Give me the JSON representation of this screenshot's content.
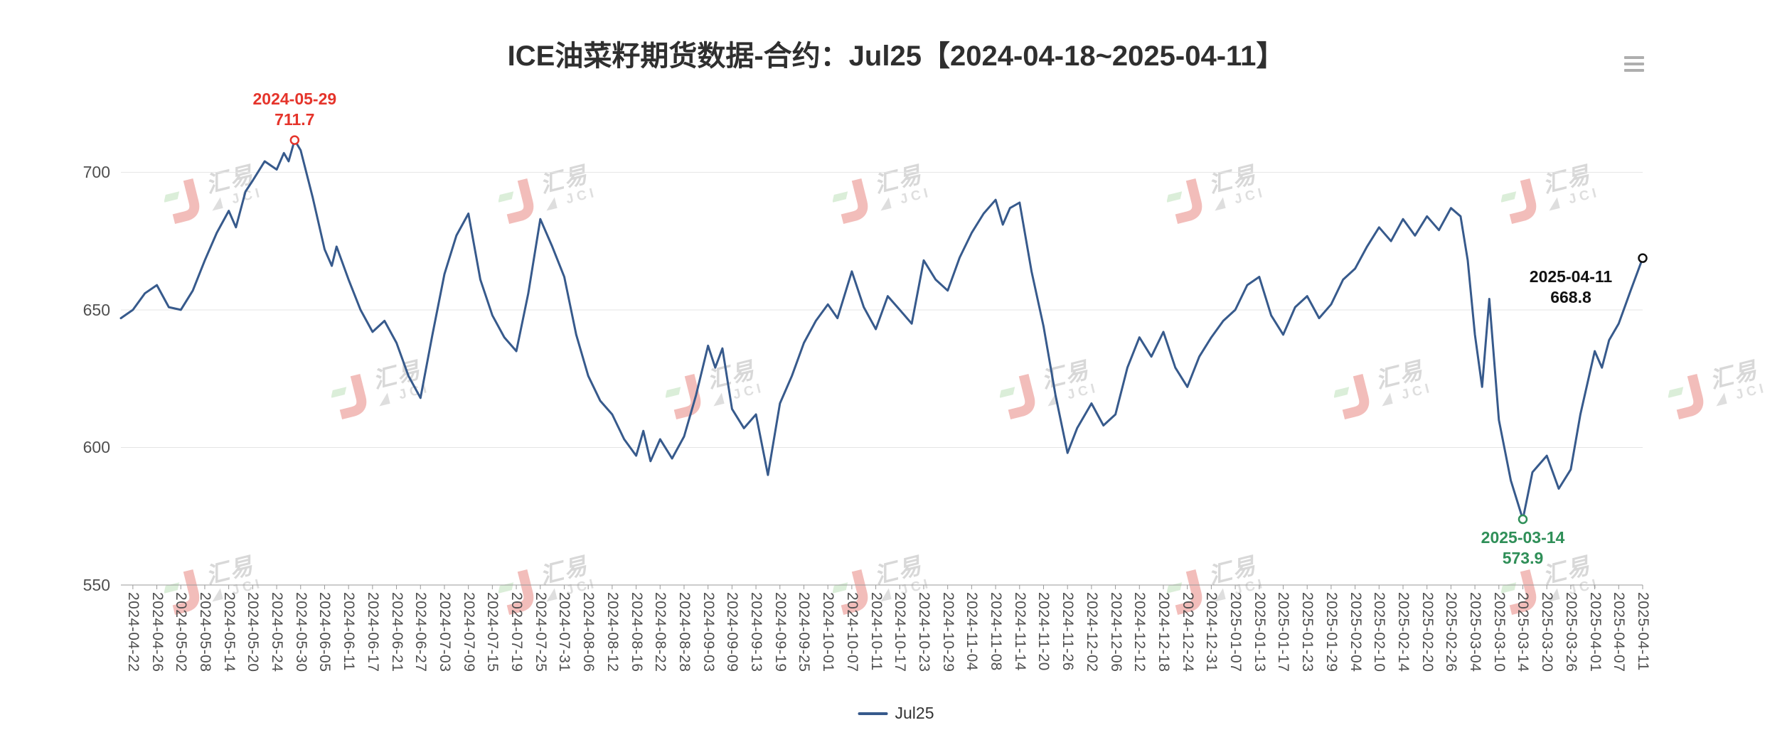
{
  "header": {
    "toolbox_icon": "menu-icon"
  },
  "watermark": {
    "cn": "汇易",
    "en": "JCI"
  },
  "colors": {
    "line": "#375A8C",
    "max_annotation": "#E5342B",
    "min_annotation": "#2F8F58",
    "last_annotation": "#111111",
    "grid": "#e4e4e4",
    "axis": "#999999",
    "axis_label": "#4f4f4f",
    "watermark_red": "#E2635C",
    "watermark_green": "#ABD8A6"
  },
  "legend": {
    "items": [
      "Jul25"
    ]
  },
  "chart_data": {
    "type": "line",
    "title": "ICE油菜籽期货数据-合约：Jul25【2024-04-18~2025-04-11】",
    "xlabel": "",
    "ylabel": "",
    "ylim": [
      550,
      720
    ],
    "y_ticks": [
      550,
      600,
      650,
      700
    ],
    "grid": true,
    "legend_position": "bottom-center",
    "x_encoding": "points are [t, value] where t is a fractional index into x_tick_labels (each tick = 4 trading days; series begins 2024-04-18 at t=-0.5)",
    "x_tick_labels": [
      "2024-04-22",
      "2024-04-26",
      "2024-05-02",
      "2024-05-08",
      "2024-05-14",
      "2024-05-20",
      "2024-05-24",
      "2024-05-30",
      "2024-06-05",
      "2024-06-11",
      "2024-06-17",
      "2024-06-21",
      "2024-06-27",
      "2024-07-03",
      "2024-07-09",
      "2024-07-15",
      "2024-07-19",
      "2024-07-25",
      "2024-07-31",
      "2024-08-06",
      "2024-08-12",
      "2024-08-16",
      "2024-08-22",
      "2024-08-28",
      "2024-09-03",
      "2024-09-09",
      "2024-09-13",
      "2024-09-19",
      "2024-09-25",
      "2024-10-01",
      "2024-10-07",
      "2024-10-11",
      "2024-10-17",
      "2024-10-23",
      "2024-10-29",
      "2024-11-04",
      "2024-11-08",
      "2024-11-14",
      "2024-11-20",
      "2024-11-26",
      "2024-12-02",
      "2024-12-06",
      "2024-12-12",
      "2024-12-18",
      "2024-12-24",
      "2024-12-31",
      "2025-01-07",
      "2025-01-13",
      "2025-01-17",
      "2025-01-23",
      "2025-01-29",
      "2025-02-04",
      "2025-02-10",
      "2025-02-14",
      "2025-02-20",
      "2025-02-26",
      "2025-03-04",
      "2025-03-10",
      "2025-03-14",
      "2025-03-20",
      "2025-03-26",
      "2025-04-01",
      "2025-04-07",
      "2025-04-11"
    ],
    "series": [
      {
        "name": "Jul25",
        "color": "#375A8C",
        "points": [
          [
            -0.5,
            647
          ],
          [
            0,
            650
          ],
          [
            0.5,
            656
          ],
          [
            1,
            659
          ],
          [
            1.5,
            651
          ],
          [
            2,
            650
          ],
          [
            2.5,
            657
          ],
          [
            3,
            668
          ],
          [
            3.5,
            678
          ],
          [
            4,
            686
          ],
          [
            4.3,
            680
          ],
          [
            4.7,
            693
          ],
          [
            5,
            697
          ],
          [
            5.5,
            704
          ],
          [
            6,
            701
          ],
          [
            6.3,
            707
          ],
          [
            6.5,
            704
          ],
          [
            6.75,
            711.7
          ],
          [
            7,
            708
          ],
          [
            7.5,
            691
          ],
          [
            8,
            672
          ],
          [
            8.3,
            666
          ],
          [
            8.5,
            673
          ],
          [
            9,
            661
          ],
          [
            9.5,
            650
          ],
          [
            10,
            642
          ],
          [
            10.5,
            646
          ],
          [
            11,
            638
          ],
          [
            11.5,
            626
          ],
          [
            12,
            618
          ],
          [
            12.5,
            641
          ],
          [
            13,
            663
          ],
          [
            13.5,
            677
          ],
          [
            14,
            685
          ],
          [
            14.5,
            661
          ],
          [
            15,
            648
          ],
          [
            15.5,
            640
          ],
          [
            16,
            635
          ],
          [
            16.5,
            656
          ],
          [
            17,
            683
          ],
          [
            17.5,
            673
          ],
          [
            18,
            662
          ],
          [
            18.5,
            641
          ],
          [
            19,
            626
          ],
          [
            19.5,
            617
          ],
          [
            20,
            612
          ],
          [
            20.5,
            603
          ],
          [
            21,
            597
          ],
          [
            21.3,
            606
          ],
          [
            21.6,
            595
          ],
          [
            22,
            603
          ],
          [
            22.5,
            596
          ],
          [
            23,
            604
          ],
          [
            23.5,
            619
          ],
          [
            24,
            637
          ],
          [
            24.3,
            629
          ],
          [
            24.6,
            636
          ],
          [
            25,
            614
          ],
          [
            25.5,
            607
          ],
          [
            26,
            612
          ],
          [
            26.5,
            590
          ],
          [
            27,
            616
          ],
          [
            27.5,
            626
          ],
          [
            28,
            638
          ],
          [
            28.5,
            646
          ],
          [
            29,
            652
          ],
          [
            29.4,
            647
          ],
          [
            30,
            664
          ],
          [
            30.5,
            651
          ],
          [
            31,
            643
          ],
          [
            31.5,
            655
          ],
          [
            32,
            650
          ],
          [
            32.5,
            645
          ],
          [
            33,
            668
          ],
          [
            33.5,
            661
          ],
          [
            34,
            657
          ],
          [
            34.5,
            669
          ],
          [
            35,
            678
          ],
          [
            35.5,
            685
          ],
          [
            36,
            690
          ],
          [
            36.3,
            681
          ],
          [
            36.6,
            687
          ],
          [
            37,
            689
          ],
          [
            37.5,
            664
          ],
          [
            38,
            644
          ],
          [
            38.5,
            619
          ],
          [
            39,
            598
          ],
          [
            39.4,
            607
          ],
          [
            40,
            616
          ],
          [
            40.5,
            608
          ],
          [
            41,
            612
          ],
          [
            41.5,
            629
          ],
          [
            42,
            640
          ],
          [
            42.5,
            633
          ],
          [
            43,
            642
          ],
          [
            43.5,
            629
          ],
          [
            44,
            622
          ],
          [
            44.5,
            633
          ],
          [
            45,
            640
          ],
          [
            45.5,
            646
          ],
          [
            46,
            650
          ],
          [
            46.5,
            659
          ],
          [
            47,
            662
          ],
          [
            47.5,
            648
          ],
          [
            48,
            641
          ],
          [
            48.5,
            651
          ],
          [
            49,
            655
          ],
          [
            49.5,
            647
          ],
          [
            50,
            652
          ],
          [
            50.5,
            661
          ],
          [
            51,
            665
          ],
          [
            51.5,
            673
          ],
          [
            52,
            680
          ],
          [
            52.5,
            675
          ],
          [
            53,
            683
          ],
          [
            53.5,
            677
          ],
          [
            54,
            684
          ],
          [
            54.5,
            679
          ],
          [
            55,
            687
          ],
          [
            55.4,
            684
          ],
          [
            55.7,
            668
          ],
          [
            56,
            641
          ],
          [
            56.3,
            622
          ],
          [
            56.6,
            654
          ],
          [
            57,
            610
          ],
          [
            57.5,
            588
          ],
          [
            58,
            573.9
          ],
          [
            58.4,
            591
          ],
          [
            59,
            597
          ],
          [
            59.5,
            585
          ],
          [
            60,
            592
          ],
          [
            60.4,
            612
          ],
          [
            61,
            635
          ],
          [
            61.3,
            629
          ],
          [
            61.6,
            639
          ],
          [
            62,
            645
          ],
          [
            62.5,
            657
          ],
          [
            63,
            668.8
          ]
        ]
      }
    ],
    "annotations": [
      {
        "kind": "max",
        "date": "2024-05-29",
        "value": 711.7,
        "t": 6.75,
        "color": "#E5342B",
        "label_position": "above"
      },
      {
        "kind": "min",
        "date": "2025-03-14",
        "value": 573.9,
        "t": 58,
        "color": "#2F8F58",
        "label_position": "below"
      },
      {
        "kind": "last",
        "date": "2025-04-11",
        "value": 668.8,
        "t": 63,
        "color": "#111111",
        "label_position": "left"
      }
    ]
  }
}
